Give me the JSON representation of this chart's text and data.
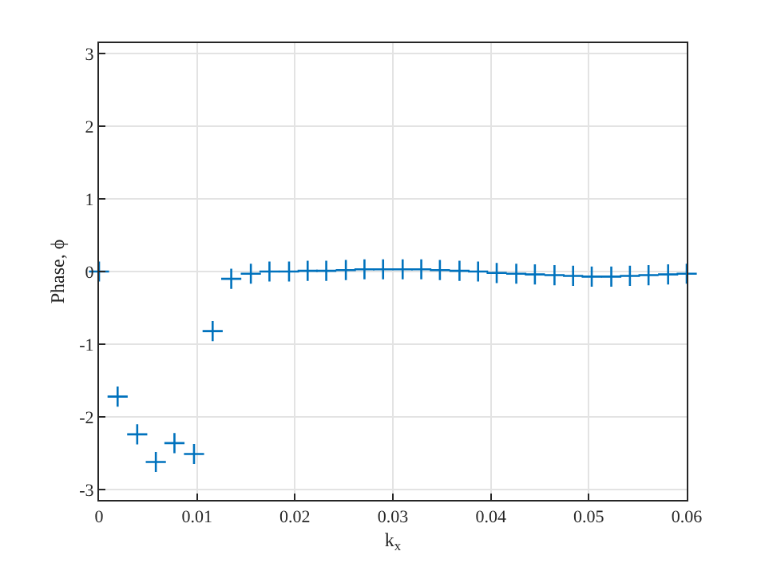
{
  "chart_data": {
    "type": "scatter",
    "xlabel": "k$_{x}$",
    "ylabel": "Phase, ϕ",
    "x": [
      0,
      0.0019,
      0.0039,
      0.0058,
      0.0077,
      0.0097,
      0.0116,
      0.0135,
      0.0155,
      0.0174,
      0.0194,
      0.0213,
      0.0232,
      0.0252,
      0.0271,
      0.029,
      0.031,
      0.0329,
      0.0348,
      0.0368,
      0.0387,
      0.0406,
      0.0426,
      0.0445,
      0.0465,
      0.0484,
      0.0503,
      0.0523,
      0.0542,
      0.0561,
      0.0581,
      0.06
    ],
    "series": [
      {
        "color": "#0072bd",
        "values": [
          0,
          -1.72,
          -2.24,
          -2.62,
          -2.36,
          -2.51,
          -0.82,
          -0.1,
          -0.03,
          0,
          0,
          0.01,
          0.01,
          0.02,
          0.03,
          0.03,
          0.03,
          0.03,
          0.02,
          0.01,
          0,
          -0.02,
          -0.03,
          -0.04,
          -0.05,
          -0.06,
          -0.07,
          -0.07,
          -0.06,
          -0.05,
          -0.04,
          -0.03
        ]
      }
    ],
    "xlim": [
      0,
      0.06
    ],
    "xticks": [
      0,
      0.01,
      0.02,
      0.03,
      0.04,
      0.05,
      0.06
    ],
    "ylim": [
      -3.1416,
      3.1416
    ],
    "yticks": [
      -3,
      -2,
      -1,
      0,
      1,
      2,
      3
    ],
    "grid": true,
    "marker": "cross",
    "legend": false
  }
}
